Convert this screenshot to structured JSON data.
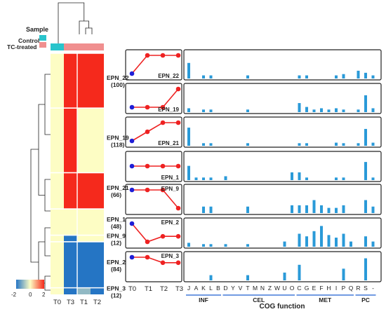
{
  "legend": {
    "title": "Sample",
    "items": [
      {
        "label": "Control",
        "color": "#29c4cc"
      },
      {
        "label": "TC-treated",
        "color": "#f08f8f"
      }
    ]
  },
  "heatmap": {
    "columns": [
      "T0",
      "T3",
      "T1",
      "T2"
    ],
    "column_groups": [
      "Control",
      "TC-treated",
      "TC-treated",
      "TC-treated"
    ],
    "clusters": [
      {
        "name": "EPN_22",
        "size": "(100)",
        "count": 100,
        "values": [
          0,
          2,
          2,
          2
        ]
      },
      {
        "name": "EPN_19",
        "size": "(118)",
        "count": 118,
        "values": [
          0,
          2,
          0,
          0
        ]
      },
      {
        "name": "EPN_21",
        "size": "(66)",
        "count": 66,
        "values": [
          0,
          2,
          2,
          2
        ]
      },
      {
        "name": "EPN_1",
        "size": "(48)",
        "count": 48,
        "values": [
          0,
          0,
          0,
          0
        ]
      },
      {
        "name": "EPN_9",
        "size": "(12)",
        "count": 12,
        "values": [
          0,
          -2,
          0,
          0
        ]
      },
      {
        "name": "EPN_2",
        "size": "(84)",
        "count": 84,
        "values": [
          0,
          -2,
          -2,
          -2
        ]
      },
      {
        "name": "EPN_3",
        "size": "(12)",
        "count": 12,
        "values": [
          0,
          -2,
          -1,
          -2
        ]
      }
    ],
    "colorbar": {
      "min_label": "-2",
      "mid_label": "0",
      "max_label": "2",
      "colors": [
        "#2575c4",
        "#fdfdc4",
        "#f5291c"
      ]
    }
  },
  "profiles": {
    "x_labels": [
      "T0",
      "T1",
      "T2",
      "T3"
    ],
    "panels": [
      {
        "label": "EPN_22",
        "points": [
          0,
          1,
          1,
          1
        ]
      },
      {
        "label": "EPN_19",
        "points": [
          0,
          0,
          0,
          1
        ]
      },
      {
        "label": "EPN_21",
        "points": [
          0,
          0.5,
          1,
          1
        ]
      },
      {
        "label": "EPN_1",
        "points": [
          0.5,
          0.5,
          0.5,
          0.5
        ]
      },
      {
        "label": "EPN_9",
        "points": [
          1,
          1,
          1,
          0
        ]
      },
      {
        "label": "EPN_2",
        "points": [
          1,
          0,
          0.3,
          0.3
        ]
      },
      {
        "label": "EPN_3",
        "points": [
          1,
          1,
          0.7,
          0.7
        ]
      }
    ],
    "start_color": "#1f1fd6",
    "line_color": "#ee2222"
  },
  "chart_data": {
    "type": "bar",
    "xlabel": "COG function",
    "categories": [
      "J",
      "A",
      "K",
      "L",
      "B",
      "D",
      "Y",
      "V",
      "T",
      "M",
      "N",
      "Z",
      "W",
      "U",
      "O",
      "C",
      "G",
      "E",
      "F",
      "H",
      "I",
      "P",
      "Q",
      "R",
      "S",
      "-"
    ],
    "groups": [
      {
        "label": "INF",
        "from": 0,
        "to": 4
      },
      {
        "label": "CEL",
        "from": 5,
        "to": 14
      },
      {
        "label": "MET",
        "from": 15,
        "to": 22
      },
      {
        "label": "PC",
        "from": 23,
        "to": 25
      }
    ],
    "bar_color": "#2a9ad8",
    "ylim": [
      0,
      1
    ],
    "series": [
      {
        "cluster": "EPN_22",
        "values": [
          0.6,
          0,
          0.12,
          0.12,
          0,
          0,
          0,
          0,
          0.12,
          0,
          0,
          0,
          0,
          0,
          0,
          0.12,
          0.12,
          0,
          0,
          0,
          0.12,
          0.17,
          0,
          0.3,
          0.22,
          0.12
        ]
      },
      {
        "cluster": "EPN_19",
        "values": [
          0.15,
          0,
          0.1,
          0.1,
          0,
          0,
          0,
          0,
          0.1,
          0,
          0,
          0,
          0,
          0,
          0,
          0.35,
          0.2,
          0.1,
          0.15,
          0.1,
          0.15,
          0.1,
          0,
          0.1,
          0.65,
          0.15
        ]
      },
      {
        "cluster": "EPN_21",
        "values": [
          0.7,
          0,
          0.1,
          0.1,
          0,
          0,
          0,
          0,
          0.1,
          0,
          0,
          0,
          0,
          0,
          0,
          0.1,
          0.1,
          0,
          0,
          0,
          0.12,
          0.1,
          0,
          0.1,
          0.65,
          0.12
        ]
      },
      {
        "cluster": "EPN_1",
        "values": [
          0.55,
          0.1,
          0.1,
          0.1,
          0,
          0.15,
          0,
          0,
          0,
          0,
          0,
          0,
          0,
          0,
          0.3,
          0.3,
          0.1,
          0,
          0,
          0,
          0.1,
          0.1,
          0,
          0,
          0.7,
          0.1
        ]
      },
      {
        "cluster": "EPN_9",
        "values": [
          0,
          0,
          0.25,
          0.25,
          0,
          0,
          0,
          0,
          0.25,
          0,
          0,
          0,
          0,
          0,
          0.3,
          0.3,
          0.3,
          0.5,
          0.3,
          0.2,
          0.2,
          0.3,
          0,
          0,
          0.5,
          0.25
        ]
      },
      {
        "cluster": "EPN_2",
        "values": [
          0.15,
          0,
          0.1,
          0.1,
          0,
          0.1,
          0,
          0,
          0.1,
          0,
          0,
          0,
          0,
          0.2,
          0,
          0.5,
          0.4,
          0.6,
          0.8,
          0.45,
          0.35,
          0.5,
          0.2,
          0,
          0.4,
          0.2
        ]
      },
      {
        "cluster": "EPN_3",
        "values": [
          0,
          0,
          0,
          0.2,
          0,
          0,
          0,
          0,
          0.2,
          0,
          0,
          0,
          0,
          0.3,
          0,
          0.6,
          0,
          0,
          0,
          0,
          0,
          0.45,
          0,
          0,
          0.85,
          0
        ]
      }
    ]
  }
}
